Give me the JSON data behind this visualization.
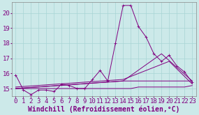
{
  "xlabel": "Windchill (Refroidissement éolien,°C)",
  "background_color": "#cce9e9",
  "grid_color": "#b0d8d8",
  "line_color": "#800080",
  "xlim": [
    -0.5,
    23.5
  ],
  "ylim": [
    14.5,
    20.7
  ],
  "yticks": [
    15,
    16,
    17,
    18,
    19,
    20
  ],
  "xticks": [
    0,
    1,
    2,
    3,
    4,
    5,
    6,
    7,
    8,
    9,
    10,
    11,
    12,
    13,
    14,
    15,
    16,
    17,
    18,
    19,
    20,
    21,
    22,
    23
  ],
  "y_main": [
    15.9,
    14.9,
    14.6,
    14.9,
    14.9,
    14.8,
    15.3,
    15.2,
    15.0,
    15.0,
    15.6,
    16.2,
    15.5,
    18.0,
    20.5,
    20.5,
    19.1,
    18.4,
    17.3,
    16.8,
    17.2,
    16.5,
    16.1,
    15.4
  ],
  "y_flat": [
    15.0,
    15.0,
    15.0,
    15.0,
    15.0,
    15.0,
    15.0,
    15.0,
    15.0,
    15.0,
    15.0,
    15.0,
    15.0,
    15.0,
    15.0,
    15.0,
    15.1,
    15.1,
    15.1,
    15.1,
    15.1,
    15.1,
    15.1,
    15.2
  ],
  "line2_x": [
    0,
    14,
    19,
    23
  ],
  "line2_y": [
    15.0,
    15.5,
    17.3,
    15.5
  ],
  "line3_x": [
    0,
    14,
    20,
    23
  ],
  "line3_y": [
    15.1,
    15.6,
    16.8,
    15.3
  ],
  "line4_x": [
    0,
    14,
    23
  ],
  "line4_y": [
    15.0,
    15.5,
    15.5
  ],
  "font_color": "#800080",
  "tick_fontsize": 6.5,
  "label_fontsize": 7.0
}
